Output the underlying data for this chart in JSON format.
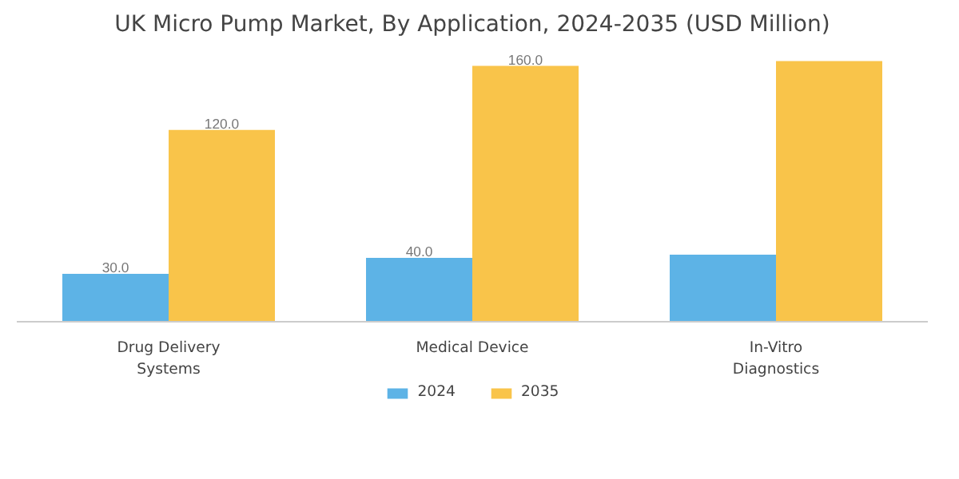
{
  "chart_data": {
    "type": "bar",
    "title": "UK Micro Pump Market, By Application, 2024-2035 (USD Million)",
    "categories": [
      "Drug Delivery Systems",
      "Medical Device",
      "In-Vitro Diagnostics"
    ],
    "series": [
      {
        "name": "2024",
        "color": "#5db3e6",
        "values": [
          30.0,
          40.0,
          42
        ],
        "value_labels": [
          "30.0",
          "40.0",
          null
        ]
      },
      {
        "name": "2035",
        "color": "#f9c44a",
        "values": [
          120.0,
          160.0,
          163
        ],
        "value_labels": [
          "120.0",
          "160.0",
          null
        ]
      }
    ],
    "legend": "bottom",
    "grid": false
  }
}
